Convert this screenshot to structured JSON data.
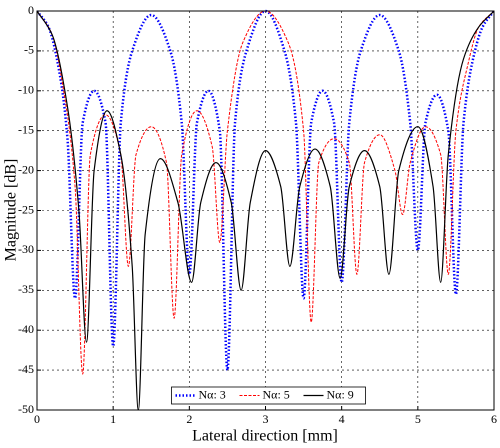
{
  "chart_data": {
    "type": "line",
    "xlabel": "Lateral direction [mm]",
    "ylabel": "Magnitude [dB]",
    "xlim": [
      0,
      6
    ],
    "ylim": [
      -50,
      0
    ],
    "xticks": [
      0,
      1,
      2,
      3,
      4,
      5,
      6
    ],
    "yticks": [
      -50,
      -45,
      -40,
      -35,
      -30,
      -25,
      -20,
      -15,
      -10,
      -5,
      0
    ],
    "grid": true,
    "legend": "lower center",
    "series": [
      {
        "name": "Nα: 3",
        "color": "#0000ff",
        "style": "dotted",
        "x": [
          0,
          0.15,
          0.3,
          0.4,
          0.5,
          0.6,
          0.75,
          0.9,
          1.0,
          1.1,
          1.25,
          1.5,
          1.75,
          1.9,
          2.0,
          2.1,
          2.25,
          2.4,
          2.5,
          2.6,
          2.75,
          3.0,
          3.25,
          3.4,
          3.5,
          3.6,
          3.75,
          3.9,
          4.0,
          4.1,
          4.25,
          4.5,
          4.75,
          4.9,
          5.0,
          5.1,
          5.25,
          5.4,
          5.5,
          5.6,
          5.75,
          5.85,
          6.0
        ],
        "values": [
          0,
          -2,
          -8,
          -16,
          -36,
          -14,
          -10,
          -14,
          -42,
          -14,
          -5,
          -0.5,
          -5,
          -14,
          -33,
          -14,
          -10,
          -15,
          -45,
          -14,
          -5,
          0,
          -5,
          -14,
          -36,
          -14,
          -10,
          -14,
          -34,
          -14,
          -5,
          -0.5,
          -5,
          -14,
          -30,
          -14,
          -10.5,
          -15,
          -35.5,
          -14,
          -5,
          -2,
          0
        ]
      },
      {
        "name": "Nα: 5",
        "color": "#ff0000",
        "style": "dashed",
        "x": [
          0,
          0.2,
          0.35,
          0.5,
          0.6,
          0.7,
          0.9,
          1.1,
          1.2,
          1.3,
          1.5,
          1.7,
          1.8,
          1.9,
          2.1,
          2.3,
          2.4,
          2.5,
          2.7,
          3.0,
          3.3,
          3.5,
          3.6,
          3.7,
          3.9,
          4.1,
          4.2,
          4.3,
          4.5,
          4.7,
          4.8,
          4.9,
          5.1,
          5.3,
          5.4,
          5.5,
          5.65,
          5.8,
          6.0
        ],
        "values": [
          0,
          -3,
          -10,
          -22,
          -45.5,
          -18,
          -13,
          -18,
          -32,
          -18,
          -14.5,
          -19,
          -38.5,
          -18,
          -12.5,
          -17,
          -29,
          -15,
          -4,
          0,
          -4,
          -15,
          -39,
          -19,
          -16,
          -19,
          -33,
          -19,
          -15.5,
          -20,
          -25.5,
          -19,
          -14.5,
          -18,
          -33,
          -15,
          -7,
          -2,
          0
        ]
      },
      {
        "name": "Nα: 9",
        "color": "#000000",
        "style": "solid",
        "x": [
          0,
          0.2,
          0.4,
          0.55,
          0.65,
          0.75,
          0.92,
          1.1,
          1.25,
          1.33,
          1.42,
          1.62,
          1.85,
          2.03,
          2.15,
          2.35,
          2.55,
          2.68,
          2.8,
          3.0,
          3.2,
          3.32,
          3.45,
          3.65,
          3.85,
          3.98,
          4.1,
          4.3,
          4.5,
          4.62,
          4.75,
          5.0,
          5.2,
          5.3,
          5.4,
          5.6,
          5.8,
          6.0
        ],
        "values": [
          0,
          -3,
          -12,
          -25,
          -41.5,
          -20,
          -12.5,
          -18,
          -32,
          -50,
          -28,
          -18.5,
          -24,
          -34,
          -24,
          -19,
          -24,
          -35,
          -24,
          -17.5,
          -22,
          -32,
          -22,
          -17.3,
          -22,
          -33.5,
          -22,
          -17.5,
          -22,
          -33,
          -20,
          -14.5,
          -22,
          -34,
          -18,
          -6,
          -2,
          0
        ]
      }
    ]
  }
}
